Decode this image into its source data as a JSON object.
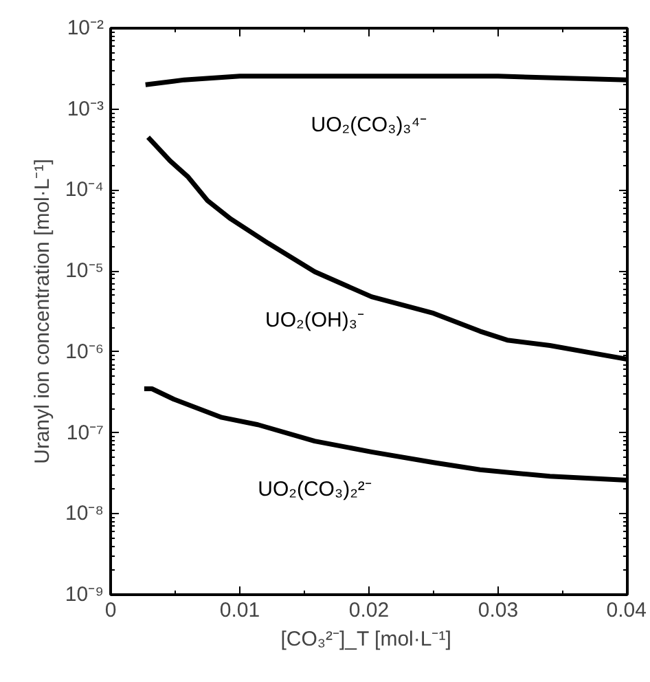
{
  "chart_data": {
    "type": "line",
    "xlabel": "[CO₃²⁻]_T  [mol·L⁻¹]",
    "ylabel": "Uranyl ion concentration [mol·L⁻¹]",
    "log": "y",
    "xlim": [
      0,
      0.04
    ],
    "ylim": [
      1e-09,
      0.01
    ],
    "xticks": [
      0,
      0.01,
      0.02,
      0.03,
      0.04
    ],
    "yticks": [
      {
        "value": 1e-09,
        "label": "10⁻⁹"
      },
      {
        "value": 1e-08,
        "label": "10⁻⁸"
      },
      {
        "value": 1e-07,
        "label": "10⁻⁷"
      },
      {
        "value": 1e-06,
        "label": "10⁻⁶"
      },
      {
        "value": 1e-05,
        "label": "10⁻⁵"
      },
      {
        "value": 0.0001,
        "label": "10⁻⁴"
      },
      {
        "value": 0.001,
        "label": "10⁻³"
      },
      {
        "value": 0.01,
        "label": "10⁻²"
      }
    ],
    "grid": false,
    "legend": false,
    "marker": "none",
    "line_style": "solid",
    "series": [
      {
        "name": "UO₂(CO₃)₃⁴⁻",
        "color": "#000000",
        "x": [
          0.0027,
          0.0057,
          0.01,
          0.02,
          0.03,
          0.04
        ],
        "values": [
          0.002,
          0.0023,
          0.00255,
          0.00255,
          0.00255,
          0.0023
        ]
      },
      {
        "name": "UO₂(OH)₃⁻",
        "color": "#000000",
        "x": [
          0.0029,
          0.0046,
          0.006,
          0.0075,
          0.0093,
          0.0122,
          0.0158,
          0.0202,
          0.025,
          0.0286,
          0.0307,
          0.034,
          0.04
        ],
        "values": [
          0.00045,
          0.00023,
          0.000145,
          7.4e-05,
          4.4e-05,
          2.2e-05,
          9.8e-06,
          4.8e-06,
          3e-06,
          1.8e-06,
          1.4e-06,
          1.2e-06,
          8.1e-07
        ]
      },
      {
        "name": "UO₂(CO₃)₂²⁻",
        "color": "#000000",
        "x": [
          0.0026,
          0.0032,
          0.0049,
          0.0086,
          0.0114,
          0.0158,
          0.0202,
          0.025,
          0.0286,
          0.034,
          0.04
        ],
        "values": [
          3.5e-07,
          3.5e-07,
          2.6e-07,
          1.55e-07,
          1.26e-07,
          7.9e-08,
          5.8e-08,
          4.3e-08,
          3.5e-08,
          2.9e-08,
          2.6e-08
        ]
      }
    ]
  }
}
